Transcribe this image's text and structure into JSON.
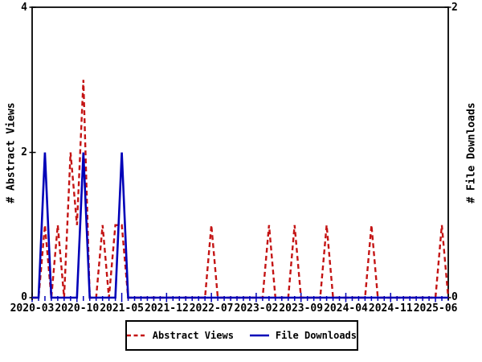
{
  "chart_data": {
    "type": "line",
    "title": "",
    "x_domain_start": "2020-03",
    "x_domain_end": "2025-08",
    "x_minor_tick_every_months": 1,
    "x_labeled_tick_every_months": 7,
    "x_tick_labels": [
      "2020-03",
      "2020-10",
      "2021-05",
      "2021-12",
      "2022-07",
      "2023-02",
      "2023-09",
      "2024-04",
      "2024-11",
      "2025-06"
    ],
    "left_axis": {
      "label": "# Abstract Views",
      "range": [
        0,
        4
      ],
      "tick_values_top_to_bottom": [
        "4",
        "2",
        "0"
      ]
    },
    "right_axis": {
      "label": "# File Downloads",
      "range": [
        0,
        2
      ],
      "tick_values_top_to_bottom": [
        "2",
        "0"
      ]
    },
    "grid": false,
    "legend_position": "bottom-center",
    "series": [
      {
        "name": "Abstract Views",
        "axis": "left",
        "color": "#c41414",
        "line_style": "dashed",
        "all_other_months_value": 0,
        "nonzero_points": {
          "2020-05": 1,
          "2020-07": 1,
          "2020-09": 2,
          "2020-10": 1,
          "2020-11": 3,
          "2021-02": 1,
          "2021-04": 1,
          "2021-05": 1,
          "2022-07": 1,
          "2023-04": 1,
          "2023-08": 1,
          "2024-01": 1,
          "2024-08": 1,
          "2025-07": 1
        }
      },
      {
        "name": "File Downloads",
        "axis": "right",
        "color": "#0000b8",
        "line_style": "solid",
        "all_other_months_value": 0,
        "nonzero_points": {
          "2020-05": 1,
          "2020-11": 1,
          "2021-05": 1
        }
      }
    ]
  },
  "legend": {
    "items": [
      {
        "label": "Abstract Views",
        "color": "#c41414",
        "style": "dashed"
      },
      {
        "label": "File Downloads",
        "color": "#0000b8",
        "style": "solid"
      }
    ]
  },
  "colors": {
    "background": "#ffffff",
    "axis_black": "#000000",
    "x_axis_blue": "#0000b8",
    "abstract_views": "#c41414",
    "file_downloads": "#0000b8"
  }
}
